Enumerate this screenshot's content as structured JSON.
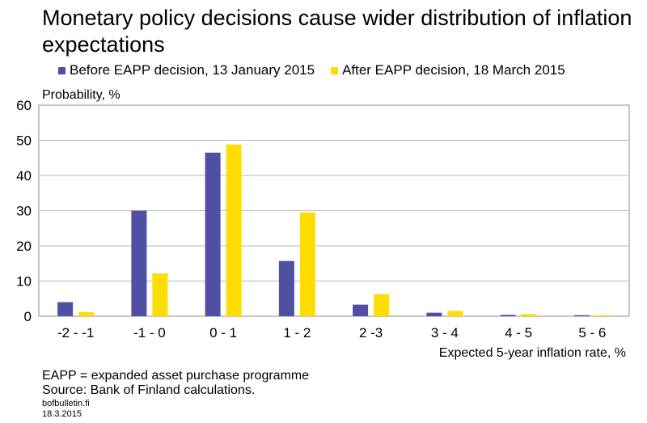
{
  "chart_data": {
    "type": "bar",
    "title": "Monetary policy decisions cause wider distribution of inflation expectations",
    "ylabel": "Probability, %",
    "xlabel": "Expected 5-year inflation rate, %",
    "ylim": [
      0,
      60
    ],
    "yticks": [
      0,
      10,
      20,
      30,
      40,
      50,
      60
    ],
    "grid": true,
    "legend_position": "top",
    "categories": [
      "-2 - -1",
      "-1 - 0",
      "0 - 1",
      "1 - 2",
      "2 -3",
      "3 - 4",
      "4 - 5",
      "5 - 6"
    ],
    "series": [
      {
        "name": "Before EAPP decision, 13 January 2015",
        "color": "#4f4fa3",
        "values": [
          4,
          30,
          46.5,
          15.7,
          3.3,
          1,
          0.4,
          0.3
        ]
      },
      {
        "name": "After EAPP decision, 18 March 2015",
        "color": "#ffdd00",
        "values": [
          1.2,
          12.2,
          48.8,
          29.5,
          6.3,
          1.5,
          0.6,
          0.3
        ]
      }
    ]
  },
  "notes": {
    "abbreviation": "EAPP = expanded asset purchase programme",
    "source": "Source: Bank of Finland calculations."
  },
  "publisher": {
    "site": "bofbulletin.fi",
    "date": "18.3.2015"
  }
}
